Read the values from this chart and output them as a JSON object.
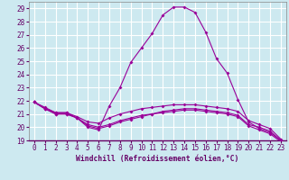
{
  "xlabel": "Windchill (Refroidissement éolien,°C)",
  "background_color": "#cde9f0",
  "grid_color": "#ffffff",
  "line_color": "#990099",
  "xlim": [
    -0.5,
    23.5
  ],
  "ylim": [
    19,
    29.5
  ],
  "yticks": [
    19,
    20,
    21,
    22,
    23,
    24,
    25,
    26,
    27,
    28,
    29
  ],
  "xticks": [
    0,
    1,
    2,
    3,
    4,
    5,
    6,
    7,
    8,
    9,
    10,
    11,
    12,
    13,
    14,
    15,
    16,
    17,
    18,
    19,
    20,
    21,
    22,
    23
  ],
  "line1_x": [
    0,
    1,
    2,
    3,
    4,
    5,
    6,
    7,
    8,
    9,
    10,
    11,
    12,
    13,
    14,
    15,
    16,
    17,
    18,
    19,
    20,
    21,
    22,
    23
  ],
  "line1_y": [
    21.9,
    21.5,
    21.1,
    21.1,
    20.7,
    20.0,
    19.8,
    21.6,
    23.0,
    24.9,
    26.0,
    27.1,
    28.5,
    29.1,
    29.1,
    28.7,
    27.2,
    25.2,
    24.1,
    22.1,
    20.4,
    19.9,
    19.6,
    19.0
  ],
  "line2_x": [
    0,
    1,
    2,
    3,
    4,
    5,
    6,
    7,
    8,
    9,
    10,
    11,
    12,
    13,
    14,
    15,
    16,
    17,
    18,
    19,
    20,
    21,
    22,
    23
  ],
  "line2_y": [
    21.9,
    21.4,
    21.1,
    21.1,
    20.8,
    20.4,
    20.3,
    20.7,
    21.0,
    21.2,
    21.4,
    21.5,
    21.6,
    21.7,
    21.7,
    21.7,
    21.6,
    21.5,
    21.4,
    21.2,
    20.5,
    20.2,
    19.9,
    19.1
  ],
  "line3_x": [
    0,
    1,
    2,
    3,
    4,
    5,
    6,
    7,
    8,
    9,
    10,
    11,
    12,
    13,
    14,
    15,
    16,
    17,
    18,
    19,
    20,
    21,
    22,
    23
  ],
  "line3_y": [
    21.9,
    21.4,
    21.0,
    21.0,
    20.7,
    20.2,
    20.0,
    20.2,
    20.5,
    20.7,
    20.9,
    21.0,
    21.2,
    21.3,
    21.4,
    21.4,
    21.3,
    21.2,
    21.1,
    20.9,
    20.2,
    20.0,
    19.7,
    19.0
  ],
  "line4_x": [
    0,
    1,
    2,
    3,
    4,
    5,
    6,
    7,
    8,
    9,
    10,
    11,
    12,
    13,
    14,
    15,
    16,
    17,
    18,
    19,
    20,
    21,
    22,
    23
  ],
  "line4_y": [
    21.9,
    21.4,
    21.0,
    21.0,
    20.7,
    20.1,
    19.9,
    20.1,
    20.4,
    20.6,
    20.8,
    21.0,
    21.1,
    21.2,
    21.3,
    21.3,
    21.2,
    21.1,
    21.0,
    20.8,
    20.1,
    19.8,
    19.5,
    18.9
  ]
}
